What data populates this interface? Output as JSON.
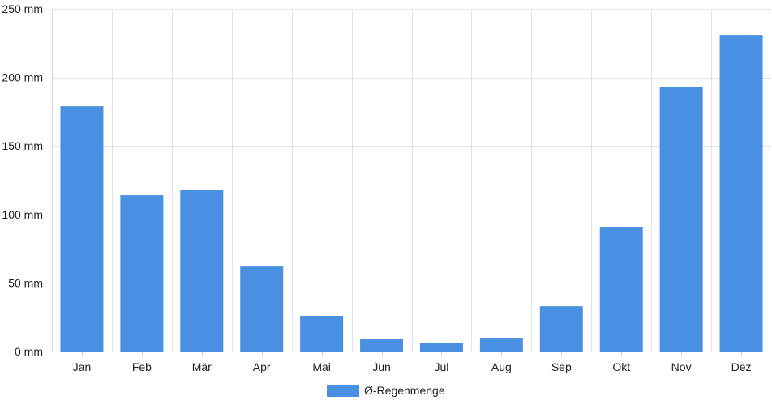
{
  "chart_data": {
    "type": "bar",
    "categories": [
      "Jan",
      "Feb",
      "Mär",
      "Apr",
      "Mai",
      "Jun",
      "Jul",
      "Aug",
      "Sep",
      "Okt",
      "Nov",
      "Dez"
    ],
    "series": [
      {
        "name": "Ø-Regenmenge",
        "color": "#4a90e2",
        "values": [
          179,
          114,
          118,
          62,
          26,
          9,
          6,
          10,
          33,
          91,
          193,
          231
        ]
      }
    ],
    "ylim": [
      0,
      250
    ],
    "yticks": [
      0,
      50,
      100,
      150,
      200,
      250
    ],
    "y_unit": "mm",
    "grid": true,
    "legend_position": "bottom"
  }
}
